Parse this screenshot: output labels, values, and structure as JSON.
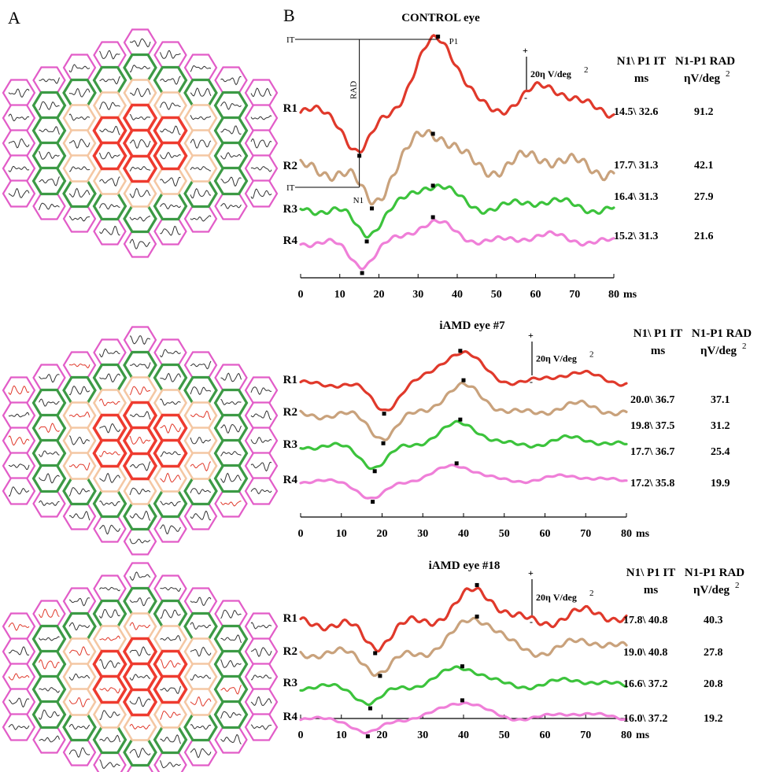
{
  "panel_labels": {
    "a": "A",
    "b": "B"
  },
  "colors": {
    "R1": "#e0392b",
    "R2": "#c9a27c",
    "R3": "#3cc33c",
    "R4": "#ef7fd8",
    "ring1": "#ee3b2f",
    "ring2": "#f4c7a3",
    "ring3": "#3c9a45",
    "ring4": "#e25cc8",
    "wave_normal": "#333333",
    "wave_abnormal": "#e0392b"
  },
  "icon_names": {
    "hex_array": "multifocal-erg-hexagon-array-icon"
  },
  "x_axis": {
    "ticks": [
      "0",
      "10",
      "20",
      "30",
      "40",
      "50",
      "60",
      "70",
      "80"
    ],
    "unit": "ms",
    "range": [
      0,
      80
    ]
  },
  "table_headers": {
    "it_line1": "N1\\ P1 IT",
    "it_line2": "ms",
    "rad_line1": "N1-P1 RAD",
    "rad_line2": "ηV/deg",
    "rad_sup": "2"
  },
  "scale_bar": {
    "plus": "+",
    "minus": "-",
    "label": "20η V/deg",
    "sup": "2"
  },
  "annotations": {
    "it_top": "IT",
    "it_bottom": "IT",
    "rad": "RAD",
    "n1": "N1",
    "p1": "P1"
  },
  "chart_data": [
    {
      "type": "line",
      "title": "CONTROL eye",
      "x_unit": "ms",
      "xlim": [
        0,
        80
      ],
      "series": [
        {
          "name": "R1",
          "n1_ms": 14.5,
          "p1_ms": 32.6,
          "it": "14.5\\ 32.6",
          "rad": "91.2",
          "rad_nV_per_deg2": 91.2
        },
        {
          "name": "R2",
          "n1_ms": 17.7,
          "p1_ms": 31.3,
          "it": "17.7\\ 31.3",
          "rad": "42.1",
          "rad_nV_per_deg2": 42.1
        },
        {
          "name": "R3",
          "n1_ms": 16.4,
          "p1_ms": 31.3,
          "it": "16.4\\ 31.3",
          "rad": "27.9",
          "rad_nV_per_deg2": 27.9
        },
        {
          "name": "R4",
          "n1_ms": 15.2,
          "p1_ms": 31.3,
          "it": "15.2\\ 31.3",
          "rad": "21.6",
          "rad_nV_per_deg2": 21.6
        }
      ]
    },
    {
      "type": "line",
      "title": "iAMD  eye #7",
      "x_unit": "ms",
      "xlim": [
        0,
        80
      ],
      "series": [
        {
          "name": "R1",
          "n1_ms": 20.0,
          "p1_ms": 36.7,
          "it": "20.0\\ 36.7",
          "rad": "37.1",
          "rad_nV_per_deg2": 37.1
        },
        {
          "name": "R2",
          "n1_ms": 19.8,
          "p1_ms": 37.5,
          "it": "19.8\\ 37.5",
          "rad": "31.2",
          "rad_nV_per_deg2": 31.2
        },
        {
          "name": "R3",
          "n1_ms": 17.7,
          "p1_ms": 36.7,
          "it": "17.7\\ 36.7",
          "rad": "25.4",
          "rad_nV_per_deg2": 25.4
        },
        {
          "name": "R4",
          "n1_ms": 17.2,
          "p1_ms": 35.8,
          "it": "17.2\\ 35.8",
          "rad": "19.9",
          "rad_nV_per_deg2": 19.9
        }
      ]
    },
    {
      "type": "line",
      "title": "iAMD eye #18",
      "x_unit": "ms",
      "xlim": [
        0,
        80
      ],
      "series": [
        {
          "name": "R1",
          "n1_ms": 17.8,
          "p1_ms": 40.8,
          "it": "17.8\\ 40.8",
          "rad": "40.3",
          "rad_nV_per_deg2": 40.3
        },
        {
          "name": "R2",
          "n1_ms": 19.0,
          "p1_ms": 40.8,
          "it": "19.0\\ 40.8",
          "rad": "27.8",
          "rad_nV_per_deg2": 27.8
        },
        {
          "name": "R3",
          "n1_ms": 16.6,
          "p1_ms": 37.2,
          "it": "16.6\\ 37.2",
          "rad": "20.8",
          "rad_nV_per_deg2": 20.8
        },
        {
          "name": "R4",
          "n1_ms": 16.0,
          "p1_ms": 37.2,
          "it": "16.0\\ 37.2",
          "rad": "19.2",
          "rad_nV_per_deg2": 19.2
        }
      ]
    }
  ]
}
